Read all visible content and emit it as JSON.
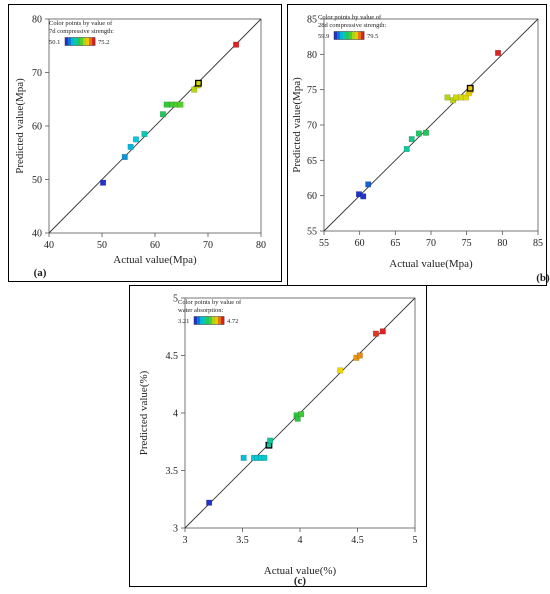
{
  "chart_data": [
    {
      "id": "a",
      "type": "scatter",
      "panel_label": "(a)",
      "title": "",
      "xlabel": "Actual value(Mpa)",
      "ylabel": "Predicted value(Mpa)",
      "xlim": [
        40,
        80
      ],
      "ylim": [
        40,
        80
      ],
      "xticks": [
        40,
        50,
        60,
        70,
        80
      ],
      "yticks": [
        40,
        50,
        60,
        70,
        80
      ],
      "legend": {
        "title_line1": "Color points by value of",
        "title_line2": "7d compressive strength:",
        "min_label": "50.1",
        "max_label": "75.2",
        "min": 50.1,
        "max": 75.2,
        "min_color": "#2233cc",
        "max_color": "#dd2222"
      },
      "reference_line": [
        40,
        80
      ],
      "points": [
        {
          "x": 50.2,
          "y": 49.4,
          "v": 50.1
        },
        {
          "x": 54.3,
          "y": 54.2,
          "v": 54.2
        },
        {
          "x": 55.4,
          "y": 56.1,
          "v": 55.6
        },
        {
          "x": 56.4,
          "y": 57.5,
          "v": 56.4
        },
        {
          "x": 58.0,
          "y": 58.5,
          "v": 58.0
        },
        {
          "x": 61.5,
          "y": 62.2,
          "v": 61.4
        },
        {
          "x": 62.2,
          "y": 64.0,
          "v": 63.0
        },
        {
          "x": 63.2,
          "y": 64.0,
          "v": 63.4
        },
        {
          "x": 64.1,
          "y": 64.0,
          "v": 63.8
        },
        {
          "x": 64.8,
          "y": 64.0,
          "v": 64.2
        },
        {
          "x": 67.4,
          "y": 66.8,
          "v": 67.2
        },
        {
          "x": 68.1,
          "y": 67.6,
          "v": 67.6
        },
        {
          "x": 68.2,
          "y": 68.0,
          "v": 68.0,
          "highlight": true
        },
        {
          "x": 75.3,
          "y": 75.2,
          "v": 75.2
        }
      ]
    },
    {
      "id": "b",
      "type": "scatter",
      "panel_label": "(b)",
      "title": "",
      "xlabel": "Actual value(Mpa)",
      "ylabel": "Predicted value(Mpa)",
      "xlim": [
        55,
        85
      ],
      "ylim": [
        55,
        85
      ],
      "xticks": [
        55,
        60,
        65,
        70,
        75,
        80,
        85
      ],
      "yticks": [
        55,
        60,
        65,
        70,
        75,
        80,
        85
      ],
      "legend": {
        "title_line1": "Color points by value of",
        "title_line2": "28d compressive strength:",
        "min_label": "59.9",
        "max_label": "79.5",
        "min": 59.9,
        "max": 79.5,
        "min_color": "#2233cc",
        "max_color": "#dd2222"
      },
      "reference_line": [
        55,
        85
      ],
      "points": [
        {
          "x": 59.9,
          "y": 60.2,
          "v": 59.9
        },
        {
          "x": 60.5,
          "y": 59.9,
          "v": 60.0
        },
        {
          "x": 61.2,
          "y": 61.6,
          "v": 61.4
        },
        {
          "x": 66.6,
          "y": 66.6,
          "v": 66.6
        },
        {
          "x": 67.3,
          "y": 68.0,
          "v": 67.6
        },
        {
          "x": 68.3,
          "y": 68.8,
          "v": 68.5
        },
        {
          "x": 69.3,
          "y": 68.9,
          "v": 68.9
        },
        {
          "x": 72.3,
          "y": 73.9,
          "v": 73.0
        },
        {
          "x": 73.1,
          "y": 73.5,
          "v": 73.4
        },
        {
          "x": 73.5,
          "y": 73.9,
          "v": 73.7
        },
        {
          "x": 74.2,
          "y": 73.9,
          "v": 74.0
        },
        {
          "x": 74.9,
          "y": 73.9,
          "v": 74.3
        },
        {
          "x": 75.3,
          "y": 74.5,
          "v": 74.8
        },
        {
          "x": 75.5,
          "y": 74.9,
          "v": 75.1
        },
        {
          "x": 75.5,
          "y": 75.2,
          "v": 75.2,
          "highlight": true
        },
        {
          "x": 79.4,
          "y": 80.2,
          "v": 79.5
        }
      ]
    },
    {
      "id": "c",
      "type": "scatter",
      "panel_label": "(c)",
      "title": "",
      "xlabel": "Actual value(%)",
      "ylabel": "Predicted value(%)",
      "xlim": [
        3,
        5
      ],
      "ylim": [
        3,
        5
      ],
      "xticks": [
        3,
        3.5,
        4,
        4.5,
        5
      ],
      "yticks": [
        3,
        3.5,
        4,
        4.5,
        5
      ],
      "legend": {
        "title_line1": "Color points by value of",
        "title_line2": "water absorption:",
        "min_label": "3.21",
        "max_label": "4.72",
        "min": 3.21,
        "max": 4.72,
        "min_color": "#2233cc",
        "max_color": "#dd2222"
      },
      "reference_line": [
        3,
        5
      ],
      "points": [
        {
          "x": 3.21,
          "y": 3.22,
          "v": 3.21
        },
        {
          "x": 3.51,
          "y": 3.61,
          "v": 3.56
        },
        {
          "x": 3.6,
          "y": 3.61,
          "v": 3.6
        },
        {
          "x": 3.63,
          "y": 3.61,
          "v": 3.61
        },
        {
          "x": 3.66,
          "y": 3.61,
          "v": 3.62
        },
        {
          "x": 3.69,
          "y": 3.61,
          "v": 3.63
        },
        {
          "x": 3.73,
          "y": 3.72,
          "v": 3.72,
          "highlight": true
        },
        {
          "x": 3.74,
          "y": 3.76,
          "v": 3.75
        },
        {
          "x": 3.97,
          "y": 3.98,
          "v": 3.97
        },
        {
          "x": 3.98,
          "y": 3.95,
          "v": 3.96
        },
        {
          "x": 4.01,
          "y": 3.99,
          "v": 4.0
        },
        {
          "x": 4.35,
          "y": 4.37,
          "v": 4.36
        },
        {
          "x": 4.49,
          "y": 4.48,
          "v": 4.48
        },
        {
          "x": 4.52,
          "y": 4.5,
          "v": 4.51
        },
        {
          "x": 4.66,
          "y": 4.69,
          "v": 4.68
        },
        {
          "x": 4.72,
          "y": 4.71,
          "v": 4.72
        }
      ]
    }
  ]
}
